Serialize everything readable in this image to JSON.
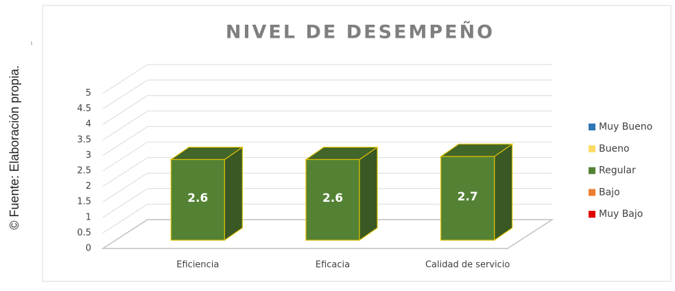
{
  "chart_data": {
    "type": "bar3d",
    "title": "NIVEL DE DESEMPEÑO",
    "source": "© Fuente: Elaboración propia.",
    "categories": [
      "Eficiencia",
      "Eficacia",
      "Calidad de servicio"
    ],
    "series": [
      {
        "name": "Muy Bueno",
        "color": "#2e75b6",
        "values": [
          null,
          null,
          null
        ]
      },
      {
        "name": "Bueno",
        "color": "#ffd966",
        "values": [
          null,
          null,
          null
        ]
      },
      {
        "name": "Regular",
        "color": "#548235",
        "values": [
          2.6,
          2.6,
          2.7
        ]
      },
      {
        "name": "Bajo",
        "color": "#ed7d31",
        "values": [
          null,
          null,
          null
        ]
      },
      {
        "name": "Muy Bajo",
        "color": "#e00000",
        "values": [
          null,
          null,
          null
        ]
      }
    ],
    "ylim": [
      0,
      5
    ],
    "yticks": [
      0,
      0.5,
      1,
      1.5,
      2,
      2.5,
      3,
      3.5,
      4,
      4.5,
      5
    ],
    "grid": true,
    "legend": "right"
  }
}
